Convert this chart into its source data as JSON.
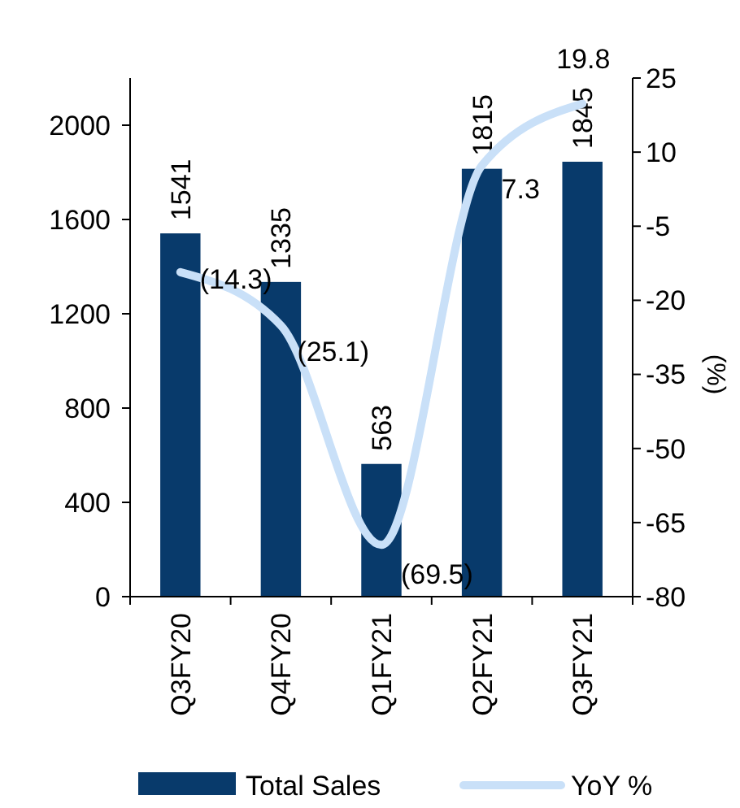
{
  "chart_data": {
    "type": "bar",
    "categories": [
      "Q3FY20",
      "Q4FY20",
      "Q1FY21",
      "Q2FY21",
      "Q3FY21"
    ],
    "series": [
      {
        "name": "Total Sales",
        "color": "#083a6b",
        "values": [
          1541,
          1335,
          563,
          1815,
          1845
        ],
        "value_labels": [
          "1541",
          "1335",
          "563",
          "1815",
          "1845"
        ]
      },
      {
        "name": "YoY %",
        "type": "line",
        "axis": "y2",
        "color": "#c9e0f8",
        "values": [
          -14.3,
          -25.1,
          -69.5,
          7.3,
          19.8
        ],
        "value_labels": [
          "(14.3)",
          "(25.1)",
          "(69.5)",
          "7.3",
          "19.8"
        ]
      }
    ],
    "ylim": [
      0,
      2200
    ],
    "yticks": [
      0,
      400,
      800,
      1200,
      1600,
      2000
    ],
    "y2lim": [
      -80,
      25
    ],
    "y2ticks": [
      -80,
      -65,
      -50,
      -35,
      -20,
      -5,
      10,
      25
    ],
    "y2label": "(%)",
    "legend": "bottom",
    "grid": false,
    "marker": "none"
  }
}
